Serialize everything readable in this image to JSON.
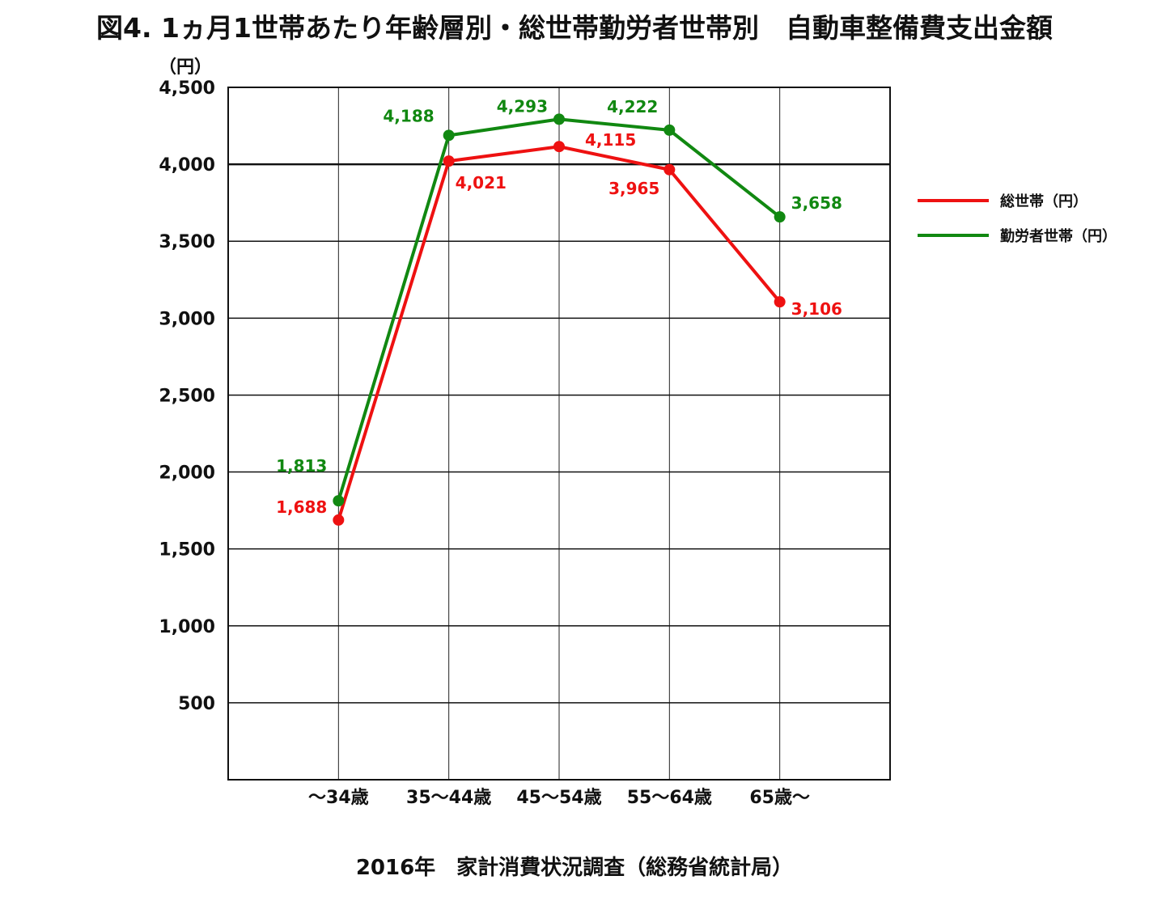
{
  "title": "図4.  1ヵ月1世帯あたり年齢層別・総世帯勤労者世帯別　自動車整備費支出金額",
  "source": "2016年　家計消費状況調査（総務省統計局）",
  "chart_data": {
    "type": "line",
    "title": "図4.  1ヵ月1世帯あたり年齢層別・総世帯勤労者世帯別　自動車整備費支出金額",
    "ylabel": "（円）",
    "xlabel": "",
    "categories": [
      "～34歳",
      "35～44歳",
      "45～54歳",
      "55～64歳",
      "65歳～"
    ],
    "ylim": [
      0,
      4500
    ],
    "yticks": [
      500,
      1000,
      1500,
      2000,
      2500,
      3000,
      3500,
      4000,
      4500
    ],
    "ytick_labels": [
      "500",
      "1,000",
      "1,500",
      "2,000",
      "2,500",
      "3,000",
      "3,500",
      "4,000",
      "4,500"
    ],
    "grid": true,
    "legend_position": "right",
    "series": [
      {
        "name": "総世帯（円）",
        "color": "#ee1111",
        "values": [
          1688,
          4021,
          4115,
          3965,
          3106
        ],
        "labels": [
          "1,688",
          "4,021",
          "4,115",
          "3,965",
          "3,106"
        ]
      },
      {
        "name": "勤労者世帯（円）",
        "color": "#118811",
        "values": [
          1813,
          4188,
          4293,
          4222,
          3658
        ],
        "labels": [
          "1,813",
          "4,188",
          "4,293",
          "4,222",
          "3,658"
        ]
      }
    ]
  }
}
